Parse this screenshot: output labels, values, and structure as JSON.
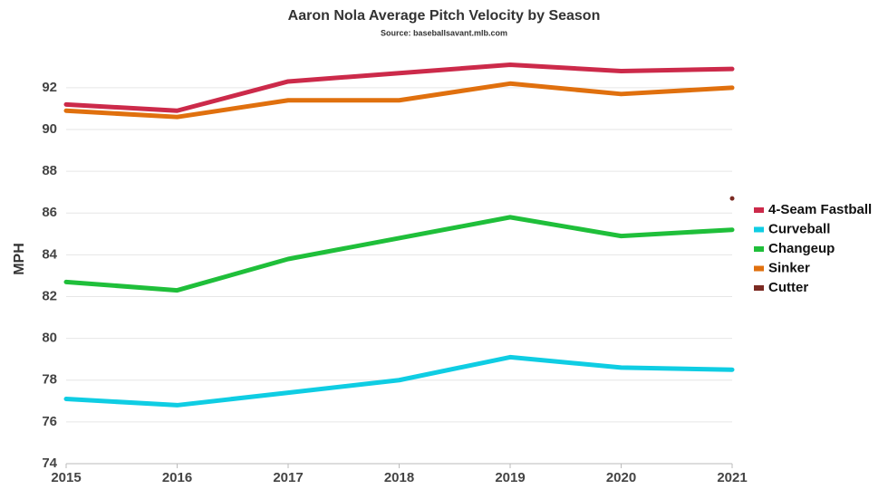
{
  "chart_data": {
    "type": "line",
    "title": "Aaron Nola Average Pitch Velocity by Season",
    "subtitle": "Source: baseballsavant.mlb.com",
    "y_label": "MPH",
    "x": [
      2015,
      2016,
      2017,
      2018,
      2019,
      2020,
      2021
    ],
    "series": [
      {
        "name": "4-Seam Fastball",
        "color": "#cc2a4a",
        "values": [
          91.2,
          90.9,
          92.3,
          92.7,
          93.1,
          92.8,
          92.9
        ]
      },
      {
        "name": "Curveball",
        "color": "#0fcde3",
        "values": [
          77.1,
          76.8,
          77.4,
          78.0,
          79.1,
          78.6,
          78.5
        ]
      },
      {
        "name": "Changeup",
        "color": "#1fbf3a",
        "values": [
          82.7,
          82.3,
          83.8,
          84.8,
          85.8,
          84.9,
          85.2
        ]
      },
      {
        "name": "Sinker",
        "color": "#e0700e",
        "values": [
          90.9,
          90.6,
          91.4,
          91.4,
          92.2,
          91.7,
          92.0
        ]
      },
      {
        "name": "Cutter",
        "color": "#7b2a22",
        "values": [
          null,
          null,
          null,
          null,
          null,
          null,
          86.7
        ]
      }
    ],
    "xlim": [
      2015,
      2021
    ],
    "xticks": [
      2015,
      2016,
      2017,
      2018,
      2019,
      2020,
      2021
    ],
    "ylim": [
      74,
      93.6
    ],
    "yticks": [
      74,
      76,
      78,
      80,
      82,
      84,
      86,
      88,
      90,
      92
    ],
    "grid": true,
    "legend": "right"
  }
}
